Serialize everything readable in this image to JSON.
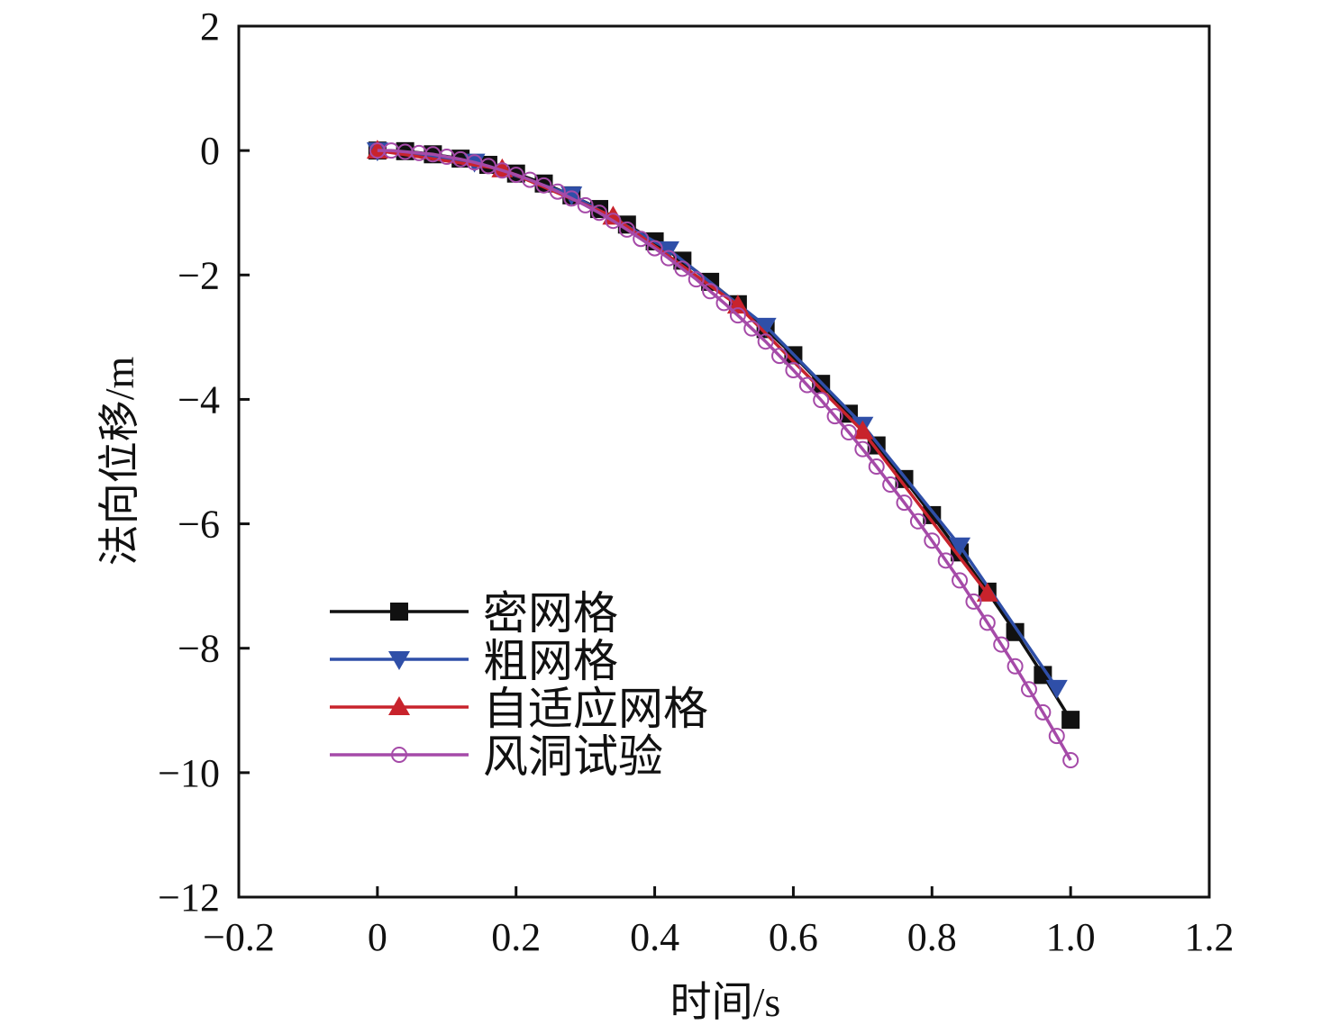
{
  "chart_data": {
    "type": "line",
    "title": "",
    "xlabel": "时间/s",
    "ylabel": "法向位移/m",
    "xlim": [
      -0.2,
      1.2
    ],
    "ylim": [
      -12,
      2
    ],
    "xticks": [
      -0.2,
      0,
      0.2,
      0.4,
      0.6,
      0.8,
      1.0,
      1.2
    ],
    "xtick_labels": [
      "−0.2",
      "0",
      "0.2",
      "0.4",
      "0.6",
      "0.8",
      "1.0",
      "1.2"
    ],
    "yticks": [
      2,
      0,
      -2,
      -4,
      -6,
      -8,
      -10,
      -12
    ],
    "ytick_labels": [
      "2",
      "0",
      "−2",
      "−4",
      "−6",
      "−8",
      "−10",
      "−12"
    ],
    "grid": false,
    "legend_placement": "lower-left",
    "series": [
      {
        "name": "密网格",
        "color": "#111111",
        "marker": "square",
        "x": [
          0,
          0.04,
          0.08,
          0.12,
          0.16,
          0.2,
          0.24,
          0.28,
          0.32,
          0.36,
          0.4,
          0.44,
          0.48,
          0.52,
          0.56,
          0.6,
          0.64,
          0.68,
          0.72,
          0.76,
          0.8,
          0.84,
          0.88,
          0.92,
          0.96,
          1.0
        ],
        "y": [
          0,
          -0.01,
          -0.06,
          -0.13,
          -0.23,
          -0.37,
          -0.53,
          -0.72,
          -0.94,
          -1.19,
          -1.46,
          -1.77,
          -2.11,
          -2.47,
          -2.87,
          -3.29,
          -3.75,
          -4.23,
          -4.74,
          -5.28,
          -5.86,
          -6.46,
          -7.09,
          -7.74,
          -8.43,
          -9.15
        ]
      },
      {
        "name": "粗网格",
        "color": "#2f4fa8",
        "marker": "triangle-down",
        "x": [
          0,
          0.14,
          0.28,
          0.42,
          0.56,
          0.7,
          0.84,
          0.98
        ],
        "y": [
          0,
          -0.18,
          -0.71,
          -1.59,
          -2.82,
          -4.41,
          -6.35,
          -8.64
        ]
      },
      {
        "name": "自适应网格",
        "color": "#c8232c",
        "marker": "triangle-up",
        "x": [
          0,
          0.18,
          0.34,
          0.52,
          0.7,
          0.88
        ],
        "y": [
          0,
          -0.3,
          -1.06,
          -2.49,
          -4.51,
          -7.12
        ]
      },
      {
        "name": "风洞试验",
        "color": "#a54aa8",
        "marker": "circle-open",
        "x": [
          0,
          0.02,
          0.04,
          0.06,
          0.08,
          0.1,
          0.12,
          0.14,
          0.16,
          0.18,
          0.2,
          0.22,
          0.24,
          0.26,
          0.28,
          0.3,
          0.32,
          0.34,
          0.36,
          0.38,
          0.4,
          0.42,
          0.44,
          0.46,
          0.48,
          0.5,
          0.52,
          0.54,
          0.56,
          0.58,
          0.6,
          0.62,
          0.64,
          0.66,
          0.68,
          0.7,
          0.72,
          0.74,
          0.76,
          0.78,
          0.8,
          0.82,
          0.84,
          0.86,
          0.88,
          0.9,
          0.92,
          0.94,
          0.96,
          0.98,
          1.0
        ],
        "y": [
          0,
          0,
          -0.02,
          -0.04,
          -0.06,
          -0.1,
          -0.14,
          -0.19,
          -0.25,
          -0.32,
          -0.39,
          -0.47,
          -0.56,
          -0.66,
          -0.77,
          -0.88,
          -1.0,
          -1.13,
          -1.27,
          -1.42,
          -1.57,
          -1.73,
          -1.9,
          -2.07,
          -2.26,
          -2.45,
          -2.65,
          -2.86,
          -3.07,
          -3.3,
          -3.53,
          -3.77,
          -4.01,
          -4.27,
          -4.53,
          -4.8,
          -5.08,
          -5.37,
          -5.66,
          -5.96,
          -6.27,
          -6.59,
          -6.91,
          -7.25,
          -7.59,
          -7.94,
          -8.29,
          -8.66,
          -9.03,
          -9.41,
          -9.8
        ]
      }
    ]
  }
}
